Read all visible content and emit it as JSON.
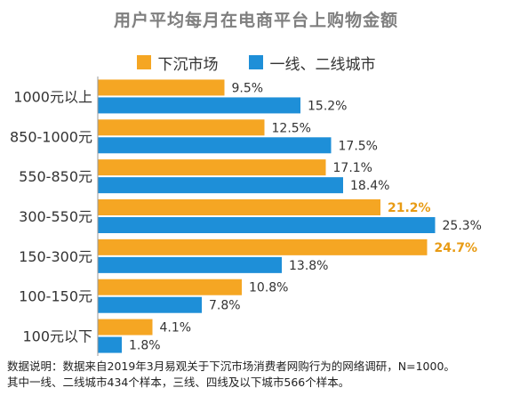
{
  "title": "用户平均每月在电商平台上购物金额",
  "colors": {
    "lower_tier": "#f5a623",
    "top_tier": "#1e8fd8",
    "axis": "#999999",
    "highlight_text": "#e89b14",
    "label_text": "#333333"
  },
  "chart_data": {
    "type": "bar",
    "orientation": "horizontal",
    "title": "用户平均每月在电商平台上购物金额",
    "xlabel": "",
    "ylabel": "",
    "xlim": [
      0,
      26
    ],
    "categories": [
      "1000元以上",
      "850-1000元",
      "550-850元",
      "300-550元",
      "150-300元",
      "100-150元",
      "100元以下"
    ],
    "series": [
      {
        "name": "下沉市场",
        "values": [
          9.5,
          12.5,
          17.1,
          21.2,
          24.7,
          10.8,
          4.1
        ],
        "labels": [
          "9.5%",
          "12.5%",
          "17.1%",
          "21.2%",
          "24.7%",
          "10.8%",
          "4.1%"
        ],
        "highlight": [
          false,
          false,
          false,
          true,
          true,
          false,
          false
        ]
      },
      {
        "name": "一线、二线城市",
        "values": [
          15.2,
          17.5,
          18.4,
          25.3,
          13.8,
          7.8,
          1.8
        ],
        "labels": [
          "15.2%",
          "17.5%",
          "18.4%",
          "25.3%",
          "13.8%",
          "7.8%",
          "1.8%"
        ],
        "highlight": [
          false,
          false,
          false,
          false,
          false,
          false,
          false
        ]
      }
    ],
    "legend_position": "top-center",
    "grid": false
  },
  "footnote": {
    "line1": "数据说明：数据来自2019年3月易观关于下沉市场消费者网购行为的网络调研，N=1000。",
    "line2": "其中一线、二线城市434个样本，三线、四线及以下城市566个样本。"
  }
}
